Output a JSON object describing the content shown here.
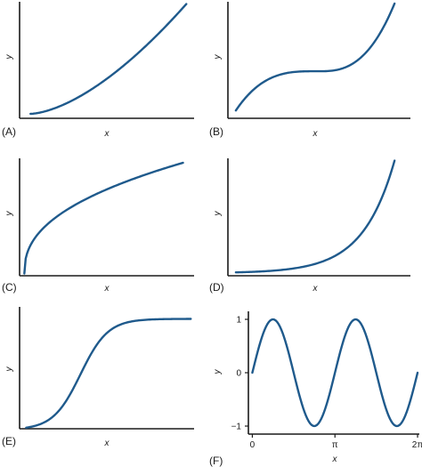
{
  "colors": {
    "curve": "#1f5a8c",
    "axis": "#1a1a1a"
  },
  "chart_data": [
    {
      "type": "line",
      "panel_label": "(A)",
      "xlabel": "x",
      "ylabel": "y",
      "grid": false,
      "shape": "quadratic-increasing",
      "x": [
        0,
        0.25,
        0.5,
        0.75,
        1
      ],
      "y": [
        0.02,
        0.2,
        0.43,
        0.69,
        1.0
      ],
      "xlim": [
        -0.07,
        1.05
      ],
      "ylim": [
        -0.02,
        1.02
      ]
    },
    {
      "type": "line",
      "panel_label": "(B)",
      "xlabel": "x",
      "ylabel": "y",
      "grid": false,
      "shape": "cubic-with-plateau",
      "x": [
        0,
        0.2,
        0.5,
        0.8,
        1
      ],
      "y": [
        0.05,
        0.37,
        0.4,
        0.48,
        1.0
      ],
      "xlim": [
        -0.05,
        1.1
      ],
      "ylim": [
        -0.02,
        1.02
      ]
    },
    {
      "type": "line",
      "panel_label": "(C)",
      "xlabel": "x",
      "ylabel": "y",
      "grid": false,
      "shape": "concave-increasing",
      "x": [
        0,
        0.1,
        0.25,
        0.5,
        0.75,
        1
      ],
      "y": [
        0.0,
        0.38,
        0.59,
        0.78,
        0.91,
        1.0
      ],
      "xlim": [
        -0.03,
        1.07
      ],
      "ylim": [
        -0.02,
        1.04
      ]
    },
    {
      "type": "line",
      "panel_label": "(D)",
      "xlabel": "x",
      "ylabel": "y",
      "grid": false,
      "shape": "exponential-increasing",
      "x": [
        0,
        0.25,
        0.5,
        0.75,
        1
      ],
      "y": [
        0.01,
        0.02,
        0.08,
        0.28,
        1.0
      ],
      "xlim": [
        -0.05,
        1.1
      ],
      "ylim": [
        -0.02,
        1.02
      ]
    },
    {
      "type": "line",
      "panel_label": "(E)",
      "xlabel": "x",
      "ylabel": "y",
      "grid": false,
      "shape": "sigmoid",
      "x": [
        0,
        0.2,
        0.4,
        0.6,
        0.8,
        1
      ],
      "y": [
        0.0,
        0.25,
        0.83,
        0.98,
        1.0,
        1.0
      ],
      "xlim": [
        -0.04,
        1.02
      ],
      "ylim": [
        -0.01,
        1.11
      ]
    },
    {
      "type": "line",
      "panel_label": "(F)",
      "xlabel": "x",
      "ylabel": "y",
      "grid": false,
      "shape": "sine",
      "function": "sin(2x)",
      "x": [
        0,
        0.785,
        1.571,
        2.356,
        3.142,
        3.927,
        4.712,
        5.498,
        6.283
      ],
      "y": [
        0,
        1,
        0,
        -1,
        0,
        1,
        0,
        -1,
        0
      ],
      "xlim": [
        -0.15,
        6.35
      ],
      "ylim": [
        -1.15,
        1.15
      ],
      "xticks": [
        0,
        3.14159,
        6.28318
      ],
      "xtick_labels": [
        "0",
        "π",
        "2π"
      ],
      "yticks": [
        1,
        0,
        -1
      ],
      "ytick_labels": [
        "1",
        "0",
        "−1"
      ]
    }
  ]
}
